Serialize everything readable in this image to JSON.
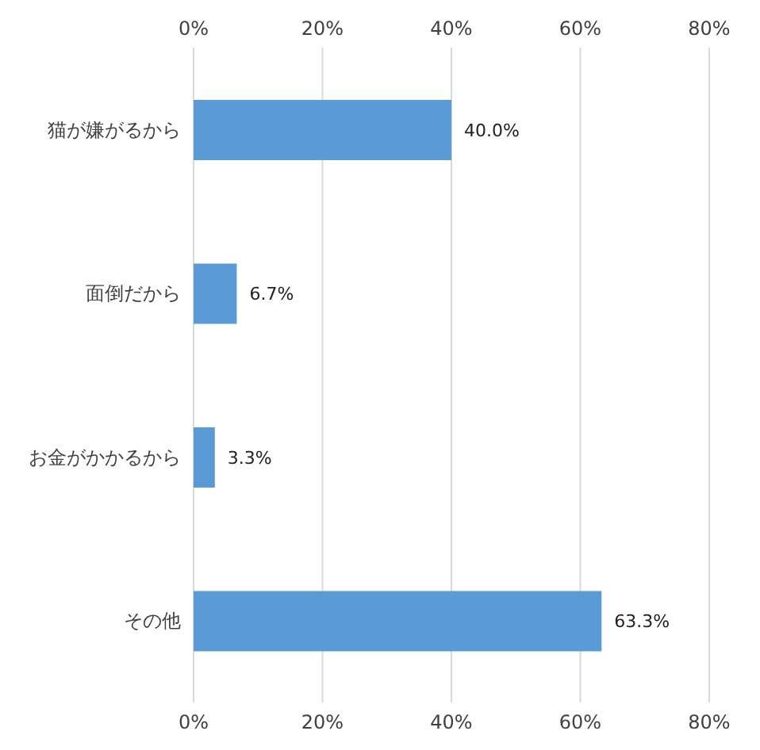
{
  "chart_data": {
    "type": "bar",
    "orientation": "horizontal",
    "categories": [
      "猫が嫌がるから",
      "面倒だから",
      "お金がかかるから",
      "その他"
    ],
    "values": [
      40,
      6.7,
      3.3,
      63.3
    ],
    "color": "#5b9bd5",
    "value_labels": [
      "40.0%",
      "6.7%",
      "3.3%",
      "63.3%"
    ],
    "xlim": [
      0,
      80
    ],
    "xticks": [
      {
        "value": 0,
        "label": "0%"
      },
      {
        "value": 20,
        "label": "20%"
      },
      {
        "value": 40,
        "label": "40%"
      },
      {
        "value": 60,
        "label": "60%"
      },
      {
        "value": 80,
        "label": "80%"
      }
    ],
    "x2lim": [
      0,
      80
    ],
    "x2ticks": [
      {
        "value": 0,
        "label": "0%"
      },
      {
        "value": 20,
        "label": "20%"
      },
      {
        "value": 40,
        "label": "40%"
      },
      {
        "value": 60,
        "label": "60%"
      },
      {
        "value": 80,
        "label": "80%"
      }
    ],
    "grid": "x"
  }
}
